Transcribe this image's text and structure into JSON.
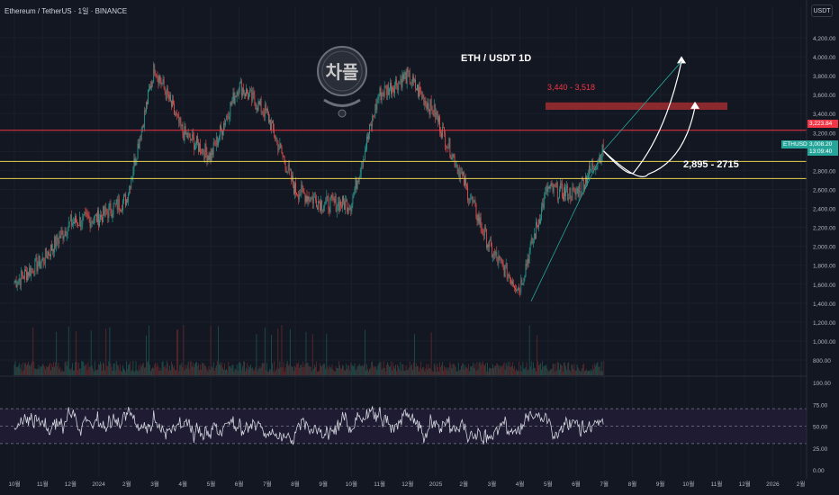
{
  "header": {
    "symbol_line": "Ethereum / TetherUS · 1일 · BINANCE",
    "unit": "USDT"
  },
  "annotations": {
    "title": "ETH / USDT 1D",
    "target_range": "3,440 - 3,518",
    "support_range": "2,895 - 2715"
  },
  "price_tags": {
    "red_level": "3,223.84",
    "symbol": "ETHUSDT",
    "last_price": "3,008.20",
    "countdown": "13:09:40"
  },
  "colors": {
    "background": "#131722",
    "up": "#26a69a",
    "down": "#ef5350",
    "resistance_line": "#f23645",
    "support_line": "#e8d34f",
    "target_box": "#8b2a2e",
    "rsi_line": "#d1d4dc",
    "rsi_band": "#1e1b33"
  },
  "logo": {
    "icon": "chappel-emblem-logo",
    "text": "차플"
  },
  "chart_data": [
    {
      "type": "candlestick",
      "title": "ETH / USDT 1D",
      "y_axis_ticks": [
        "4,200.00",
        "4,000.00",
        "3,800.00",
        "3,600.00",
        "3,400.00",
        "3,200.00",
        "3,000.00",
        "2,800.00",
        "2,600.00",
        "2,400.00",
        "2,200.00",
        "2,000.00",
        "1,800.00",
        "1,600.00",
        "1,400.00",
        "1,200.00",
        "1,000.00",
        "800.00"
      ],
      "x_axis_ticks": [
        "10월",
        "11월",
        "12월",
        "2024",
        "2월",
        "3월",
        "4월",
        "5월",
        "6월",
        "7월",
        "8월",
        "9월",
        "10월",
        "11월",
        "12월",
        "2025",
        "2월",
        "3월",
        "4월",
        "5월",
        "6월",
        "7월",
        "8월",
        "9월",
        "10월",
        "11월",
        "12월",
        "2026",
        "2월"
      ],
      "ylim": [
        800,
        4200
      ],
      "price_path_approx": [
        {
          "x": "10월",
          "y": 1620
        },
        {
          "x": "11월",
          "y": 1850
        },
        {
          "x": "12월",
          "y": 2250
        },
        {
          "x": "2024",
          "y": 2300
        },
        {
          "x": "2월",
          "y": 2500
        },
        {
          "x": "3월",
          "y": 3900
        },
        {
          "x": "4월",
          "y": 3200
        },
        {
          "x": "5월",
          "y": 2950
        },
        {
          "x": "6월",
          "y": 3700
        },
        {
          "x": "7월",
          "y": 3400
        },
        {
          "x": "8월",
          "y": 2600
        },
        {
          "x": "9월",
          "y": 2450
        },
        {
          "x": "10월",
          "y": 2450
        },
        {
          "x": "11월",
          "y": 3600
        },
        {
          "x": "12월",
          "y": 3800
        },
        {
          "x": "2025",
          "y": 3400
        },
        {
          "x": "2월",
          "y": 2700
        },
        {
          "x": "3월",
          "y": 1950
        },
        {
          "x": "4월",
          "y": 1550
        },
        {
          "x": "5월",
          "y": 2600
        },
        {
          "x": "6월",
          "y": 2550
        },
        {
          "x": "7월",
          "y": 3008
        }
      ],
      "horizontal_levels": [
        3223.84,
        2895,
        2715
      ],
      "target_zone": [
        3440,
        3518
      ],
      "last_price": 3008.2
    },
    {
      "type": "line",
      "title": "",
      "y_axis_ticks": [
        "100.00",
        "75.00",
        "50.00",
        "25.00",
        "0.00"
      ],
      "ylim": [
        0,
        100
      ],
      "levels": [
        70,
        50,
        30
      ]
    }
  ]
}
